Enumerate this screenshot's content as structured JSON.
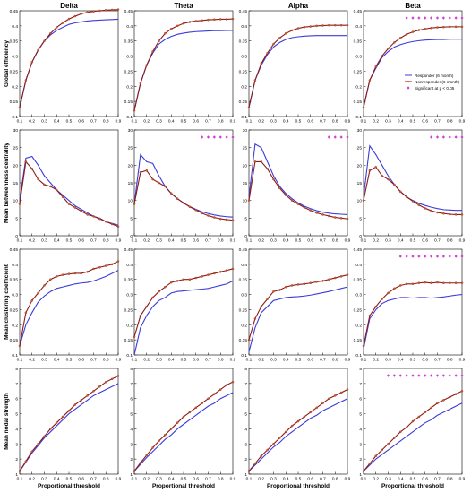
{
  "colors": {
    "responder": "#3b3bd9",
    "nonresponder": "#8b1a1a",
    "nonresponder_marker": "#d06020",
    "significant": "#d040d0",
    "axis": "#000000"
  },
  "x_ticks": [
    "0.1",
    "0.2",
    "0.3",
    "0.4",
    "0.5",
    "0.6",
    "0.7",
    "0.8",
    "0.9"
  ],
  "xlabel": "Proportional threshold",
  "legend": {
    "location": "Beta / Global efficiency panel, lower-right",
    "items": [
      {
        "key": "responder",
        "label": "Responder (6 month)"
      },
      {
        "key": "nonresponder",
        "label": "Nonresponder (6 month)"
      },
      {
        "key": "significant",
        "label": "Significant at p < 0.05"
      }
    ]
  },
  "chart_data": {
    "type": "line",
    "x": [
      0.1,
      0.15,
      0.2,
      0.25,
      0.3,
      0.35,
      0.4,
      0.45,
      0.5,
      0.55,
      0.6,
      0.65,
      0.7,
      0.75,
      0.8,
      0.85,
      0.9
    ],
    "bands": [
      "Delta",
      "Theta",
      "Alpha",
      "Beta"
    ],
    "metrics": [
      {
        "ylabel": "Global efficiency",
        "ylim": [
          0.1,
          0.45
        ],
        "yticks": [
          "0.1",
          "0.15",
          "0.2",
          "0.25",
          "0.3",
          "0.35",
          "0.4",
          "0.45"
        ],
        "panels": [
          {
            "responder": [
              0.13,
              0.22,
              0.28,
              0.32,
              0.35,
              0.37,
              0.385,
              0.395,
              0.405,
              0.41,
              0.413,
              0.416,
              0.418,
              0.419,
              0.42,
              0.421,
              0.422
            ],
            "nonresponder": [
              0.13,
              0.22,
              0.28,
              0.32,
              0.35,
              0.375,
              0.395,
              0.41,
              0.423,
              0.432,
              0.44,
              0.445,
              0.448,
              0.45,
              0.452,
              0.453,
              0.454
            ],
            "significant": []
          },
          {
            "responder": [
              0.12,
              0.21,
              0.27,
              0.31,
              0.34,
              0.355,
              0.365,
              0.372,
              0.376,
              0.379,
              0.381,
              0.382,
              0.383,
              0.384,
              0.384,
              0.385,
              0.385
            ],
            "nonresponder": [
              0.12,
              0.21,
              0.27,
              0.315,
              0.35,
              0.375,
              0.39,
              0.4,
              0.408,
              0.413,
              0.416,
              0.418,
              0.42,
              0.421,
              0.422,
              0.422,
              0.423
            ],
            "significant": []
          },
          {
            "responder": [
              0.13,
              0.22,
              0.27,
              0.305,
              0.33,
              0.345,
              0.355,
              0.361,
              0.364,
              0.366,
              0.367,
              0.368,
              0.368,
              0.368,
              0.368,
              0.368,
              0.368
            ],
            "nonresponder": [
              0.13,
              0.22,
              0.275,
              0.31,
              0.34,
              0.36,
              0.375,
              0.385,
              0.392,
              0.396,
              0.398,
              0.4,
              0.401,
              0.402,
              0.402,
              0.402,
              0.402
            ],
            "significant": []
          },
          {
            "responder": [
              0.13,
              0.22,
              0.26,
              0.295,
              0.315,
              0.33,
              0.338,
              0.344,
              0.348,
              0.351,
              0.353,
              0.354,
              0.355,
              0.355,
              0.356,
              0.356,
              0.356
            ],
            "nonresponder": [
              0.13,
              0.22,
              0.265,
              0.3,
              0.325,
              0.345,
              0.36,
              0.372,
              0.38,
              0.386,
              0.39,
              0.393,
              0.395,
              0.396,
              0.397,
              0.397,
              0.397
            ],
            "significant": [
              0.45,
              0.5,
              0.55,
              0.6,
              0.65,
              0.7,
              0.75,
              0.8,
              0.85,
              0.9
            ]
          }
        ]
      },
      {
        "ylabel": "Mean betweenness centrality",
        "ylim": [
          0,
          30
        ],
        "yticks": [
          "0",
          "5",
          "10",
          "15",
          "20",
          "25",
          "30"
        ],
        "panels": [
          {
            "responder": [
              10,
              22,
              22.5,
              20,
              17,
              15,
              13,
              11.5,
              10,
              8.5,
              7.5,
              6.5,
              5.5,
              5,
              4,
              3.5,
              3
            ],
            "nonresponder": [
              9,
              21,
              19,
              16,
              14.5,
              14,
              13,
              11,
              9,
              8,
              7,
              6,
              5.5,
              4.8,
              4,
              3.3,
              2.6
            ],
            "significant": []
          },
          {
            "responder": [
              9,
              23,
              21,
              20.5,
              17,
              14,
              12,
              10.5,
              9.3,
              8.3,
              7.5,
              6.8,
              6.3,
              5.9,
              5.6,
              5.4,
              5.3
            ],
            "nonresponder": [
              9,
              18,
              18.5,
              16,
              15,
              14,
              12,
              10.5,
              9.3,
              8.2,
              7.3,
              6.4,
              5.7,
              5.2,
              4.8,
              4.6,
              4.4
            ],
            "significant": [
              0.65,
              0.7,
              0.75,
              0.8,
              0.85,
              0.9
            ]
          },
          {
            "responder": [
              11,
              26,
              25,
              21,
              17,
              14,
              12,
              10.5,
              9.3,
              8.4,
              7.7,
              7.1,
              6.7,
              6.4,
              6.2,
              6.1,
              6.0
            ],
            "nonresponder": [
              10,
              21,
              21,
              19,
              16,
              13.5,
              11.5,
              10,
              9,
              8,
              7.2,
              6.5,
              6,
              5.6,
              5.2,
              5.0,
              4.8
            ],
            "significant": [
              0.75,
              0.8,
              0.85,
              0.9
            ]
          },
          {
            "responder": [
              11,
              25.5,
              23,
              20,
              17,
              14.5,
              12.5,
              11,
              10,
              9.2,
              8.6,
              8.1,
              7.7,
              7.4,
              7.3,
              7.2,
              7.2
            ],
            "nonresponder": [
              10,
              18.5,
              19.5,
              17,
              16,
              14.5,
              12.5,
              11,
              9.8,
              8.7,
              7.8,
              7.1,
              6.6,
              6.3,
              6.1,
              6.0,
              6.0
            ],
            "significant": [
              0.65,
              0.7,
              0.75,
              0.8,
              0.85,
              0.9
            ]
          }
        ]
      },
      {
        "ylabel": "Mean clustering coefficient",
        "ylim": [
          0.1,
          0.45
        ],
        "yticks": [
          "0.1",
          "0.15",
          "0.2",
          "0.25",
          "0.3",
          "0.35",
          "0.4",
          "0.45"
        ],
        "panels": [
          {
            "responder": [
              0.13,
              0.2,
              0.24,
              0.275,
              0.295,
              0.31,
              0.32,
              0.325,
              0.33,
              0.335,
              0.338,
              0.34,
              0.345,
              0.352,
              0.36,
              0.37,
              0.38
            ],
            "nonresponder": [
              0.13,
              0.24,
              0.28,
              0.305,
              0.33,
              0.35,
              0.36,
              0.365,
              0.368,
              0.37,
              0.37,
              0.375,
              0.385,
              0.39,
              0.395,
              0.4,
              0.41
            ],
            "significant": []
          },
          {
            "responder": [
              0.1,
              0.19,
              0.23,
              0.26,
              0.28,
              0.29,
              0.305,
              0.31,
              0.312,
              0.314,
              0.316,
              0.318,
              0.32,
              0.325,
              0.33,
              0.335,
              0.345
            ],
            "nonresponder": [
              0.16,
              0.23,
              0.26,
              0.29,
              0.31,
              0.325,
              0.34,
              0.345,
              0.35,
              0.35,
              0.355,
              0.36,
              0.365,
              0.37,
              0.375,
              0.38,
              0.385
            ],
            "significant": []
          },
          {
            "responder": [
              0.11,
              0.19,
              0.24,
              0.26,
              0.28,
              0.285,
              0.29,
              0.292,
              0.293,
              0.295,
              0.298,
              0.302,
              0.306,
              0.31,
              0.315,
              0.32,
              0.325
            ],
            "nonresponder": [
              0.15,
              0.22,
              0.26,
              0.285,
              0.31,
              0.315,
              0.325,
              0.33,
              0.333,
              0.335,
              0.338,
              0.342,
              0.345,
              0.35,
              0.355,
              0.36,
              0.365
            ],
            "significant": []
          },
          {
            "responder": [
              0.12,
              0.22,
              0.25,
              0.27,
              0.28,
              0.285,
              0.29,
              0.29,
              0.288,
              0.29,
              0.29,
              0.288,
              0.29,
              0.292,
              0.295,
              0.298,
              0.3
            ],
            "nonresponder": [
              0.13,
              0.23,
              0.26,
              0.285,
              0.305,
              0.32,
              0.33,
              0.335,
              0.335,
              0.338,
              0.34,
              0.338,
              0.34,
              0.338,
              0.338,
              0.338,
              0.338
            ],
            "significant": [
              0.4,
              0.45,
              0.5,
              0.55,
              0.6,
              0.65,
              0.7,
              0.75,
              0.8,
              0.85,
              0.9
            ]
          }
        ]
      },
      {
        "ylabel": "Mean nodal strength",
        "ylim": [
          1,
          8
        ],
        "yticks": [
          "1",
          "2",
          "3",
          "4",
          "5",
          "6",
          "7",
          "8"
        ],
        "panels": [
          {
            "responder": [
              1.2,
              1.8,
              2.4,
              2.9,
              3.4,
              3.8,
              4.2,
              4.6,
              5.0,
              5.3,
              5.6,
              5.9,
              6.2,
              6.4,
              6.6,
              6.8,
              7.0
            ],
            "nonresponder": [
              1.2,
              1.85,
              2.5,
              3.0,
              3.5,
              4.0,
              4.4,
              4.8,
              5.2,
              5.6,
              5.9,
              6.2,
              6.5,
              6.8,
              7.1,
              7.3,
              7.5
            ],
            "significant": []
          },
          {
            "responder": [
              1.2,
              1.65,
              2.1,
              2.5,
              2.9,
              3.3,
              3.6,
              4.0,
              4.3,
              4.6,
              4.9,
              5.2,
              5.5,
              5.7,
              6.0,
              6.2,
              6.4
            ],
            "nonresponder": [
              1.2,
              1.75,
              2.25,
              2.75,
              3.2,
              3.6,
              4.0,
              4.4,
              4.8,
              5.1,
              5.4,
              5.7,
              6.0,
              6.3,
              6.6,
              6.9,
              7.1
            ],
            "significant": []
          },
          {
            "responder": [
              1.2,
              1.6,
              2.0,
              2.4,
              2.8,
              3.1,
              3.5,
              3.8,
              4.1,
              4.4,
              4.7,
              4.9,
              5.2,
              5.4,
              5.6,
              5.8,
              6.0
            ],
            "nonresponder": [
              1.2,
              1.7,
              2.2,
              2.6,
              3.0,
              3.4,
              3.8,
              4.2,
              4.5,
              4.8,
              5.1,
              5.4,
              5.7,
              6.0,
              6.2,
              6.4,
              6.6
            ],
            "significant": []
          },
          {
            "responder": [
              1.2,
              1.6,
              2.0,
              2.3,
              2.6,
              2.9,
              3.2,
              3.5,
              3.8,
              4.1,
              4.4,
              4.6,
              4.9,
              5.1,
              5.3,
              5.5,
              5.7
            ],
            "nonresponder": [
              1.2,
              1.7,
              2.2,
              2.6,
              3.0,
              3.4,
              3.8,
              4.1,
              4.5,
              4.8,
              5.1,
              5.4,
              5.7,
              5.9,
              6.1,
              6.3,
              6.5
            ],
            "significant": [
              0.3,
              0.35,
              0.4,
              0.45,
              0.5,
              0.55,
              0.6,
              0.65,
              0.7,
              0.75,
              0.8,
              0.85,
              0.9
            ]
          }
        ]
      }
    ]
  }
}
